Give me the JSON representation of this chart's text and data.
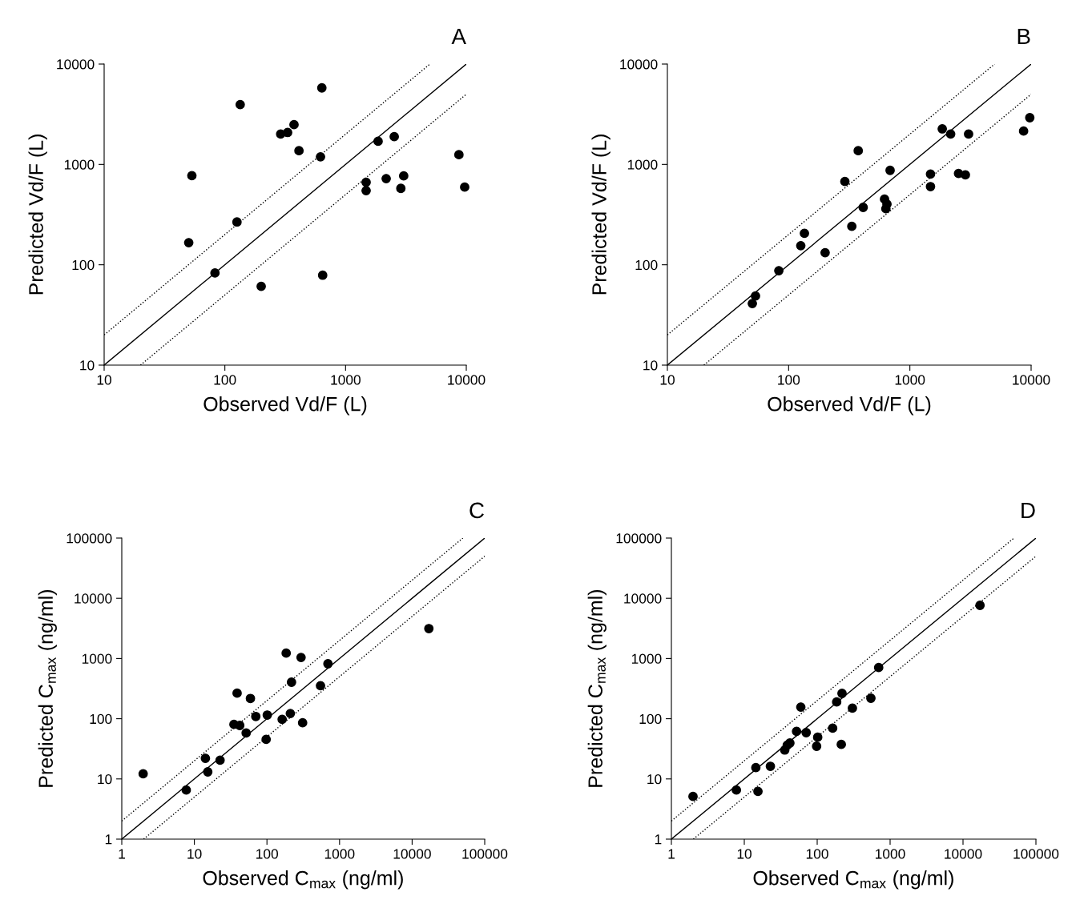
{
  "chart_data": [
    {
      "type": "scatter",
      "title": "A",
      "xlabel": "Observed Vd/F (L)",
      "ylabel": "Predicted Vd/F (L)",
      "log": "xy",
      "xlim": [
        10,
        10000
      ],
      "ylim": [
        10,
        10000
      ],
      "xticks": [
        10,
        100,
        1000,
        10000
      ],
      "yticks": [
        10,
        100,
        1000,
        10000
      ],
      "marker": "circle",
      "series": [
        {
          "color": "#000000",
          "x": [
            636,
            134,
            374,
            331,
            290,
            411,
            620,
            1860,
            2530,
            8690,
            53.3,
            1480,
            1480,
            2170,
            3030,
            2870,
            9700,
            126,
            50.2,
            82.8,
            200,
            646
          ],
          "values": [
            5790,
            3950,
            2490,
            2080,
            2010,
            1370,
            1190,
            1700,
            1890,
            1250,
            773,
            664,
            548,
            722,
            769,
            577,
            594,
            267,
            166,
            82.8,
            61,
            78.7
          ]
        },
        {
          "type": "line",
          "color": "#000000",
          "line_style": "solid",
          "marker": "none",
          "x": [
            10,
            10000
          ],
          "values": [
            10,
            10000
          ]
        },
        {
          "type": "line",
          "color": "#000000",
          "line_style": "dotted",
          "marker": "none",
          "x": [
            10,
            5000
          ],
          "values": [
            20,
            10000
          ]
        },
        {
          "type": "line",
          "color": "#000000",
          "line_style": "dotted",
          "marker": "none",
          "x": [
            20,
            10000
          ],
          "values": [
            10,
            5000
          ]
        }
      ]
    },
    {
      "type": "scatter",
      "title": "B",
      "xlabel": "Observed Vd/F (L)",
      "ylabel": "Predicted Vd/F (L)",
      "log": "xy",
      "xlim": [
        10,
        10000
      ],
      "ylim": [
        10,
        10000
      ],
      "xticks": [
        10,
        100,
        1000,
        10000
      ],
      "yticks": [
        10,
        100,
        1000,
        10000
      ],
      "marker": "circle",
      "series": [
        {
          "color": "#000000",
          "x": [
            9750,
            8670,
            1850,
            2170,
            3050,
            375,
            687,
            291,
            1480,
            1480,
            2520,
            2870,
            618,
            647,
            634,
            412,
            332,
            135,
            126,
            200,
            83,
            53.3,
            50.2
          ],
          "values": [
            2920,
            2150,
            2260,
            2010,
            2010,
            1370,
            873,
            676,
            802,
            601,
            813,
            788,
            451,
            402,
            362,
            373,
            242,
            206,
            155,
            132,
            87.3,
            48.9,
            41.1
          ]
        },
        {
          "type": "line",
          "color": "#000000",
          "line_style": "solid",
          "marker": "none",
          "x": [
            10,
            10000
          ],
          "values": [
            10,
            10000
          ]
        },
        {
          "type": "line",
          "color": "#000000",
          "line_style": "dotted",
          "marker": "none",
          "x": [
            10,
            5000
          ],
          "values": [
            20,
            10000
          ]
        },
        {
          "type": "line",
          "color": "#000000",
          "line_style": "dotted",
          "marker": "none",
          "x": [
            20,
            10000
          ],
          "values": [
            10,
            5000
          ]
        }
      ]
    },
    {
      "type": "scatter",
      "title": "C",
      "xlabel": "Observed C$_{max}$ (ng/ml)",
      "ylabel": "Predicted C$_{max}$ (ng/ml)",
      "log": "xy",
      "xlim": [
        1,
        100000
      ],
      "ylim": [
        1,
        100000
      ],
      "xticks": [
        1,
        10,
        100,
        1000,
        10000,
        100000
      ],
      "yticks": [
        1,
        10,
        100,
        1000,
        10000,
        100000
      ],
      "marker": "circle",
      "series": [
        {
          "color": "#000000",
          "x": [
            17000,
            184,
            295,
            692,
            218,
            547,
            38.8,
            59.2,
            70.2,
            101,
            210,
            162,
            310,
            35.1,
            42.2,
            51.7,
            97.5,
            14.2,
            22.6,
            15.3,
            1.97,
            7.73
          ],
          "values": [
            3140,
            1230,
            1040,
            817,
            404,
            354,
            266,
            217,
            109,
            115,
            122,
            97.8,
            85.7,
            80.5,
            77.3,
            58.1,
            45.5,
            22.0,
            20.5,
            13.1,
            12.2,
            6.54
          ]
        },
        {
          "type": "line",
          "color": "#000000",
          "line_style": "solid",
          "marker": "none",
          "x": [
            1,
            100000
          ],
          "values": [
            1,
            100000
          ]
        },
        {
          "type": "line",
          "color": "#000000",
          "line_style": "dotted",
          "marker": "none",
          "x": [
            1,
            50000
          ],
          "values": [
            2,
            100000
          ]
        },
        {
          "type": "line",
          "color": "#000000",
          "line_style": "dotted",
          "marker": "none",
          "x": [
            2,
            100000
          ],
          "values": [
            1,
            50000
          ]
        }
      ]
    },
    {
      "type": "scatter",
      "title": "D",
      "xlabel": "Observed C$_{max}$ (ng/ml)",
      "ylabel": "Predicted C$_{max}$ (ng/ml)",
      "log": "xy",
      "xlim": [
        1,
        100000
      ],
      "ylim": [
        1,
        100000
      ],
      "xticks": [
        1,
        10,
        100,
        1000,
        10000,
        100000
      ],
      "yticks": [
        1,
        10,
        100,
        1000,
        10000,
        100000
      ],
      "marker": "circle",
      "series": [
        {
          "color": "#000000",
          "x": [
            17100,
            697,
            219,
            185,
            545,
            304,
            59.6,
            163,
            52.1,
            70.6,
            101.6,
            98.2,
            214,
            42.2,
            38.8,
            35.9,
            14.4,
            22.8,
            7.79,
            15.4,
            1.98
          ],
          "values": [
            7640,
            708,
            263,
            190,
            219,
            150,
            156,
            69.8,
            61.8,
            58.7,
            49.3,
            34.9,
            37.5,
            39.4,
            36.3,
            30.2,
            15.4,
            16.2,
            6.54,
            6.21,
            5.12
          ]
        },
        {
          "type": "line",
          "color": "#000000",
          "line_style": "solid",
          "marker": "none",
          "x": [
            1,
            100000
          ],
          "values": [
            1,
            100000
          ]
        },
        {
          "type": "line",
          "color": "#000000",
          "line_style": "dotted",
          "marker": "none",
          "x": [
            1,
            50000
          ],
          "values": [
            2,
            100000
          ]
        },
        {
          "type": "line",
          "color": "#000000",
          "line_style": "dotted",
          "marker": "none",
          "x": [
            2,
            100000
          ],
          "values": [
            1,
            50000
          ]
        }
      ]
    }
  ]
}
